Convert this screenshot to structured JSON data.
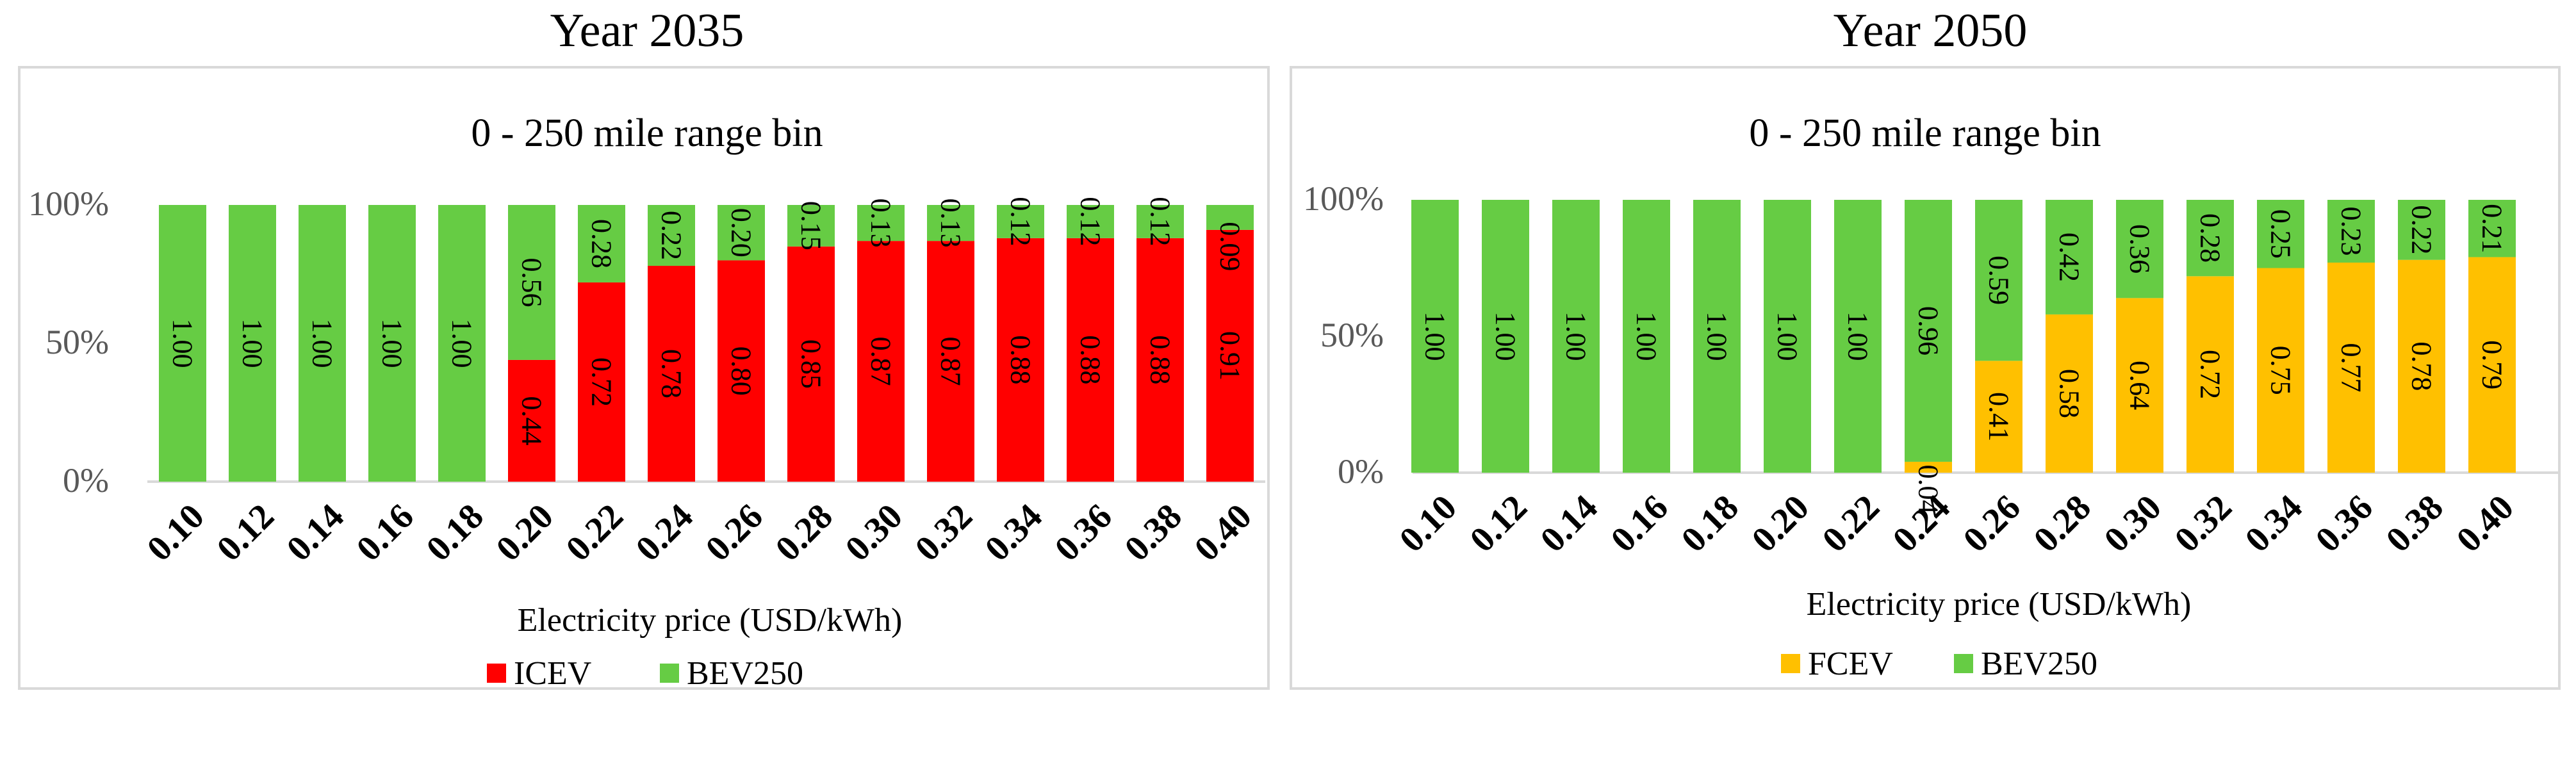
{
  "chart_data": [
    {
      "type": "bar",
      "stacked": true,
      "percent": true,
      "heading": "Year 2035",
      "title": "0 - 250 mile range bin",
      "xlabel": "Electricity price (USD/kWh)",
      "ylabel": "",
      "yticks": [
        "0%",
        "50%",
        "100%"
      ],
      "ylim": [
        0,
        1
      ],
      "grid": false,
      "legend_position": "bottom",
      "categories": [
        "0.10",
        "0.12",
        "0.14",
        "0.16",
        "0.18",
        "0.20",
        "0.22",
        "0.24",
        "0.26",
        "0.28",
        "0.30",
        "0.32",
        "0.34",
        "0.36",
        "0.38",
        "0.40"
      ],
      "series": [
        {
          "name": "ICEV",
          "color": "#ff0000",
          "values": [
            0,
            0,
            0,
            0,
            0,
            0.44,
            0.72,
            0.78,
            0.8,
            0.85,
            0.87,
            0.87,
            0.88,
            0.88,
            0.88,
            0.91
          ],
          "labels": [
            "",
            "",
            "",
            "",
            "",
            "0.44",
            "0.72",
            "0.78",
            "0.80",
            "0.85",
            "0.87",
            "0.87",
            "0.88",
            "0.88",
            "0.88",
            "0.91"
          ]
        },
        {
          "name": "BEV250",
          "color": "#66cc44",
          "values": [
            1.0,
            1.0,
            1.0,
            1.0,
            1.0,
            0.56,
            0.28,
            0.22,
            0.2,
            0.15,
            0.13,
            0.13,
            0.12,
            0.12,
            0.12,
            0.09
          ],
          "labels": [
            "1.00",
            "1.00",
            "1.00",
            "1.00",
            "1.00",
            "0.56",
            "0.28",
            "0.22",
            "0.20",
            "0.15",
            "0.13",
            "0.13",
            "0.12",
            "0.12",
            "0.12",
            "0.09"
          ]
        }
      ]
    },
    {
      "type": "bar",
      "stacked": true,
      "percent": true,
      "heading": "Year 2050",
      "title": "0 - 250 mile range bin",
      "xlabel": "Electricity price (USD/kWh)",
      "ylabel": "",
      "yticks": [
        "0%",
        "50%",
        "100%"
      ],
      "ylim": [
        0,
        1
      ],
      "grid": false,
      "legend_position": "bottom",
      "categories": [
        "0.10",
        "0.12",
        "0.14",
        "0.16",
        "0.18",
        "0.20",
        "0.22",
        "0.24",
        "0.26",
        "0.28",
        "0.30",
        "0.32",
        "0.34",
        "0.36",
        "0.38",
        "0.40"
      ],
      "series": [
        {
          "name": "FCEV",
          "color": "#ffc000",
          "values": [
            0,
            0,
            0,
            0,
            0,
            0,
            0,
            0.04,
            0.41,
            0.58,
            0.64,
            0.72,
            0.75,
            0.77,
            0.78,
            0.79
          ],
          "labels": [
            "",
            "",
            "",
            "",
            "",
            "",
            "",
            "0.04",
            "0.41",
            "0.58",
            "0.64",
            "0.72",
            "0.75",
            "0.77",
            "0.78",
            "0.79"
          ]
        },
        {
          "name": "BEV250",
          "color": "#66cc44",
          "values": [
            1.0,
            1.0,
            1.0,
            1.0,
            1.0,
            1.0,
            1.0,
            0.96,
            0.59,
            0.42,
            0.36,
            0.28,
            0.25,
            0.23,
            0.22,
            0.21
          ],
          "labels": [
            "1.00",
            "1.00",
            "1.00",
            "1.00",
            "1.00",
            "1.00",
            "1.00",
            "0.96",
            "0.59",
            "0.42",
            "0.36",
            "0.28",
            "0.25",
            "0.23",
            "0.22",
            "0.21"
          ]
        }
      ]
    }
  ]
}
